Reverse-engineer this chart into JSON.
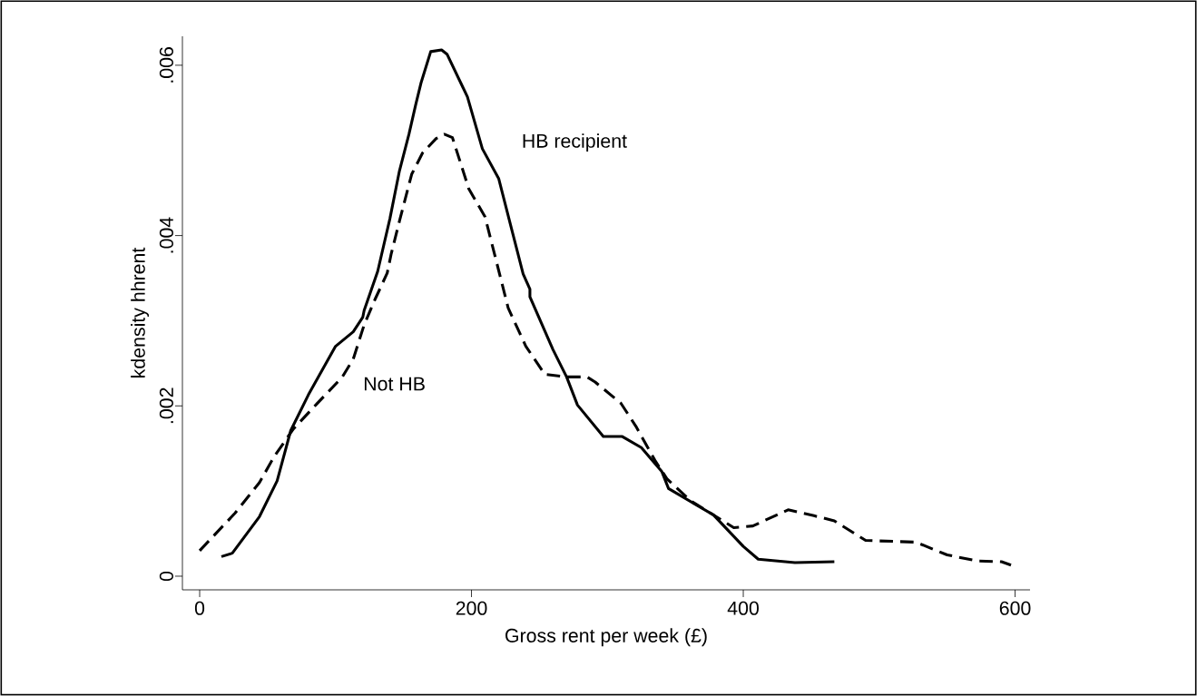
{
  "chart_data": {
    "type": "line",
    "xlabel": "Gross rent per week (£)",
    "ylabel": "kdensity hhrent",
    "xlim": [
      -12.7,
      611
    ],
    "ylim": [
      -0.00016,
      0.00634
    ],
    "xticks": [
      0,
      200,
      400,
      600
    ],
    "yticks": [
      0,
      {
        "value": 0.002,
        "label": ".002"
      },
      {
        "value": 0.004,
        "label": ".004"
      },
      {
        "value": 0.006,
        "label": ".006"
      }
    ],
    "grid": false,
    "marker": "none",
    "series": [
      {
        "color": "#000000",
        "line_style": "solid",
        "x": [
          16,
          24,
          44,
          57,
          67,
          80,
          100,
          113,
          120,
          121,
          131,
          140,
          147,
          154,
          159,
          163,
          170,
          178,
          182,
          197,
          208,
          220,
          233,
          238,
          243,
          243,
          260,
          270,
          278,
          297,
          311,
          325,
          340,
          345,
          364,
          378,
          400,
          411,
          438,
          467
        ],
        "values": [
          0.00023,
          0.00027,
          0.0007,
          0.00112,
          0.00171,
          0.00213,
          0.0027,
          0.00287,
          0.00304,
          0.00312,
          0.00358,
          0.0042,
          0.00476,
          0.00519,
          0.00554,
          0.0058,
          0.00616,
          0.00618,
          0.00613,
          0.00563,
          0.00502,
          0.00467,
          0.00386,
          0.00355,
          0.00337,
          0.00328,
          0.00266,
          0.00234,
          0.00201,
          0.00164,
          0.00164,
          0.00151,
          0.00123,
          0.00103,
          0.00085,
          0.00072,
          0.00035,
          0.0002,
          0.00016,
          0.00017
        ]
      },
      {
        "color": "#000000",
        "line_style": "dashed",
        "x": [
          0,
          26,
          44,
          55,
          69,
          86,
          105,
          113,
          121,
          129,
          138,
          141,
          147,
          156,
          164,
          174,
          180,
          186,
          198,
          210,
          227,
          240,
          254,
          270,
          285,
          291,
          310,
          321,
          335,
          344,
          361,
          393,
          407,
          433,
          452,
          467,
          490,
          527,
          550,
          572,
          590,
          597
        ],
        "values": [
          0.0003,
          0.00074,
          0.0011,
          0.00141,
          0.00173,
          0.00202,
          0.00234,
          0.00255,
          0.00295,
          0.00325,
          0.00356,
          0.00379,
          0.00417,
          0.00472,
          0.00497,
          0.00514,
          0.00519,
          0.00515,
          0.00455,
          0.00422,
          0.00315,
          0.0027,
          0.00237,
          0.00234,
          0.00234,
          0.00228,
          0.00203,
          0.00176,
          0.00136,
          0.00114,
          0.00089,
          0.00057,
          0.00059,
          0.00078,
          0.00071,
          0.00065,
          0.00042,
          0.0004,
          0.00025,
          0.00018,
          0.00017,
          0.00013
        ]
      }
    ],
    "annotations": [
      "HB recipient",
      "Not HB"
    ]
  }
}
